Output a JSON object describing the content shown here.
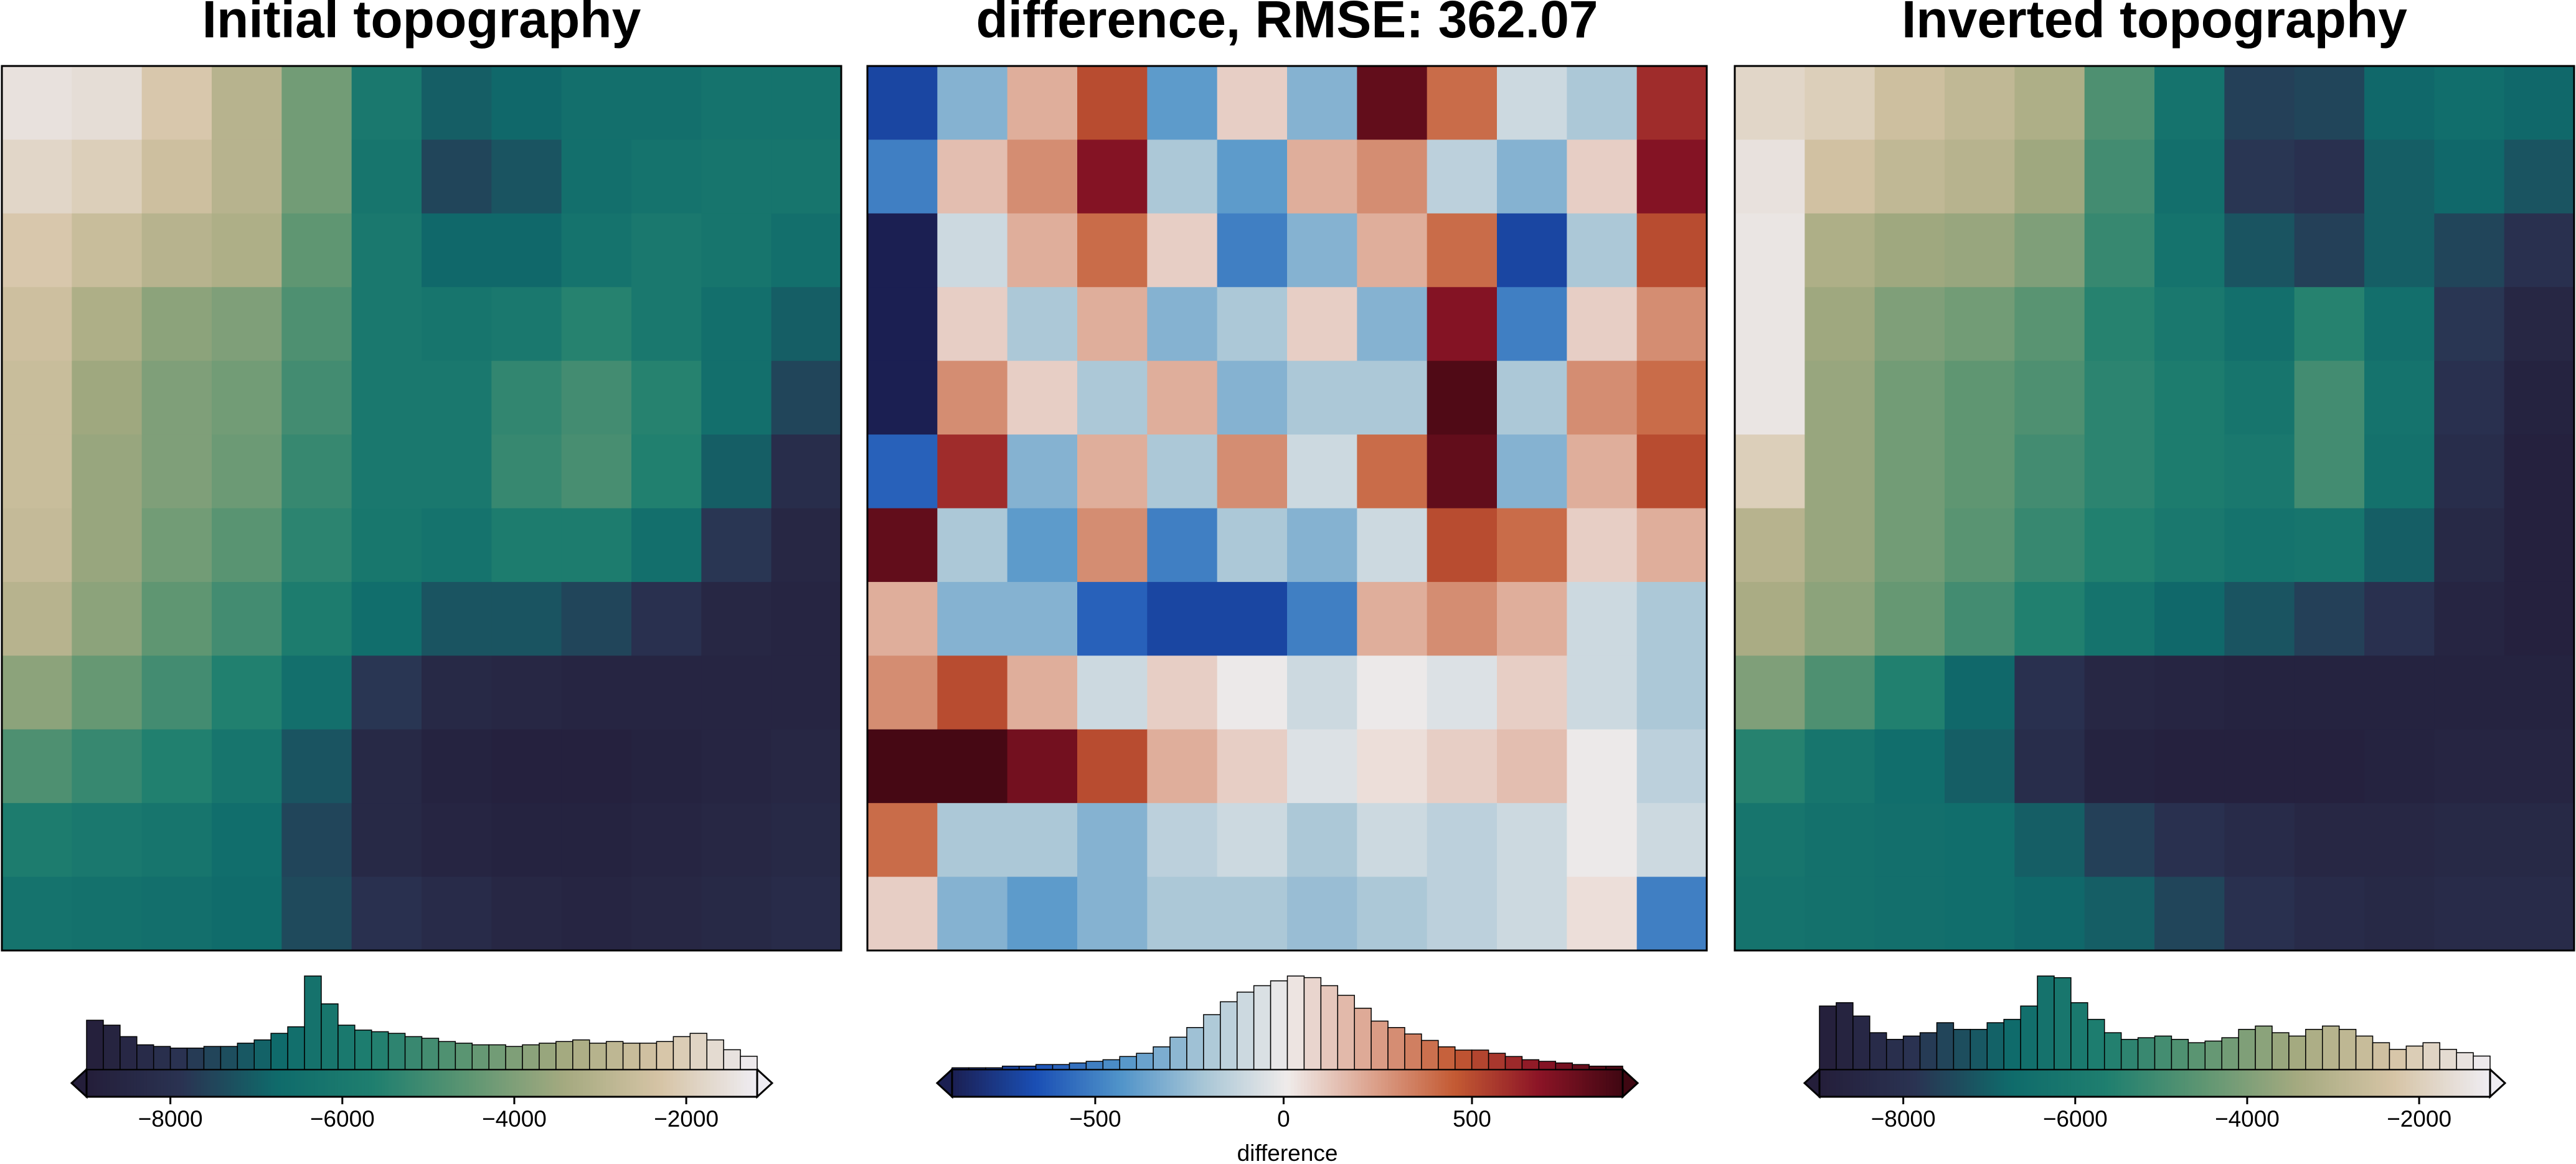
{
  "chart_data": [
    {
      "type": "heatmap",
      "title": "Initial topography",
      "colors": [
        "#241e3a",
        "#2a3352",
        "#0f6b6b",
        "#1f7f6f",
        "#5e9672",
        "#a5aa80",
        "#d6c4a6",
        "#efedf3"
      ],
      "z": [
        [
          -1500,
          -1600,
          -2200,
          -3000,
          -4200,
          -6000,
          -7000,
          -6800,
          -6500,
          -6500,
          -6300,
          -6300
        ],
        [
          -1800,
          -2000,
          -2500,
          -3000,
          -4200,
          -6200,
          -7500,
          -7200,
          -6500,
          -6300,
          -6200,
          -6200
        ],
        [
          -2200,
          -2600,
          -3000,
          -3200,
          -4500,
          -6000,
          -6800,
          -6800,
          -6300,
          -6000,
          -6200,
          -6500
        ],
        [
          -2500,
          -3200,
          -3800,
          -4000,
          -4800,
          -6000,
          -6200,
          -6000,
          -5500,
          -6000,
          -6500,
          -7000
        ],
        [
          -2600,
          -3500,
          -4000,
          -4200,
          -5000,
          -6000,
          -6000,
          -5300,
          -5000,
          -5500,
          -6500,
          -7500
        ],
        [
          -2600,
          -3600,
          -4000,
          -4300,
          -5200,
          -6000,
          -6000,
          -5200,
          -4900,
          -5600,
          -7000,
          -8200
        ],
        [
          -2700,
          -3600,
          -4200,
          -4600,
          -5400,
          -6100,
          -6300,
          -5800,
          -5800,
          -6500,
          -7800,
          -8500
        ],
        [
          -3000,
          -3800,
          -4500,
          -5000,
          -5800,
          -6600,
          -7200,
          -7200,
          -7500,
          -8000,
          -8500,
          -8600
        ],
        [
          -3800,
          -4400,
          -5000,
          -5600,
          -6500,
          -7800,
          -8400,
          -8500,
          -8600,
          -8600,
          -8600,
          -8600
        ],
        [
          -4800,
          -5200,
          -5600,
          -6200,
          -7200,
          -8400,
          -8700,
          -8800,
          -8800,
          -8700,
          -8600,
          -8500
        ],
        [
          -5800,
          -6000,
          -6200,
          -6600,
          -7500,
          -8400,
          -8600,
          -8700,
          -8700,
          -8600,
          -8500,
          -8400
        ],
        [
          -6300,
          -6400,
          -6500,
          -6700,
          -7400,
          -8000,
          -8300,
          -8500,
          -8600,
          -8500,
          -8400,
          -8300
        ]
      ],
      "colorbar": {
        "xlim": [
          -8975,
          -1175
        ],
        "xticks": [
          {
            "value": -8000,
            "label": "−8000"
          },
          {
            "value": -6000,
            "label": "−6000"
          },
          {
            "value": -4000,
            "label": "−4000"
          },
          {
            "value": -2000,
            "label": "−2000"
          }
        ]
      },
      "histogram": {
        "bins": [
          -8975,
          -8780,
          -8585,
          -8390,
          -8195,
          -8000,
          -7805,
          -7610,
          -7415,
          -7220,
          -7025,
          -6830,
          -6635,
          -6440,
          -6245,
          -6050,
          -5855,
          -5660,
          -5465,
          -5270,
          -5075,
          -4880,
          -4685,
          -4490,
          -4295,
          -4100,
          -3905,
          -3710,
          -3515,
          -3320,
          -3125,
          -2930,
          -2735,
          -2540,
          -2345,
          -2150,
          -1955,
          -1760,
          -1565,
          -1370,
          -1175
        ],
        "counts": [
          30,
          27,
          20,
          15,
          14,
          13,
          13,
          14,
          14,
          16,
          18,
          22,
          26,
          57,
          40,
          27,
          24,
          23,
          22,
          20,
          19,
          17,
          16,
          15,
          15,
          14,
          15,
          16,
          17,
          18,
          16,
          17,
          16,
          16,
          17,
          20,
          22,
          18,
          12,
          8
        ]
      }
    },
    {
      "type": "heatmap",
      "title": "difference, RMSE: 362.07",
      "colors": [
        "#1b1f52",
        "#1a4fb5",
        "#4f93c9",
        "#a8c6d6",
        "#efebea",
        "#dca38e",
        "#c35a33",
        "#8c1426",
        "#3f0712"
      ],
      "z": [
        [
          -700,
          -300,
          200,
          500,
          -400,
          100,
          -300,
          800,
          400,
          -100,
          -200,
          600
        ],
        [
          -500,
          150,
          300,
          700,
          -200,
          -400,
          200,
          300,
          -150,
          -300,
          100,
          700
        ],
        [
          -880,
          -100,
          200,
          400,
          100,
          -500,
          -300,
          200,
          400,
          -700,
          -200,
          500
        ],
        [
          -880,
          100,
          -200,
          200,
          -300,
          -200,
          100,
          -300,
          700,
          -500,
          100,
          300
        ],
        [
          -880,
          300,
          100,
          -200,
          200,
          -300,
          -200,
          -200,
          850,
          -200,
          300,
          400
        ],
        [
          -600,
          600,
          -300,
          200,
          -200,
          300,
          -100,
          400,
          800,
          -300,
          200,
          500
        ],
        [
          800,
          -200,
          -400,
          300,
          -500,
          -200,
          -300,
          -100,
          500,
          400,
          100,
          200
        ],
        [
          200,
          -300,
          -300,
          -600,
          -700,
          -700,
          -500,
          200,
          300,
          200,
          -100,
          -200
        ],
        [
          300,
          500,
          200,
          -100,
          100,
          0,
          -100,
          0,
          -50,
          100,
          -100,
          -200
        ],
        [
          880,
          880,
          750,
          500,
          200,
          100,
          -50,
          50,
          100,
          150,
          0,
          -150
        ],
        [
          400,
          -200,
          -200,
          -300,
          -150,
          -100,
          -200,
          -100,
          -150,
          -100,
          0,
          -100
        ],
        [
          100,
          -300,
          -400,
          -300,
          -200,
          -200,
          -250,
          -200,
          -150,
          -100,
          50,
          -500
        ]
      ],
      "colorbar": {
        "xlim": [
          -880,
          900
        ],
        "label": "difference",
        "xticks": [
          {
            "value": -500,
            "label": "−500"
          },
          0,
          500
        ]
      },
      "histogram": {
        "bins": [
          -880,
          -835.5,
          -791,
          -746.5,
          -702,
          -657.5,
          -613,
          -568.5,
          -524,
          -479.5,
          -435,
          -390.5,
          -346,
          -301.5,
          -257,
          -212.5,
          -168,
          -123.5,
          -79,
          -34.5,
          10,
          54.5,
          99,
          143.5,
          188,
          232.5,
          277,
          321.5,
          366,
          410.5,
          455,
          499.5,
          544,
          588.5,
          633,
          677.5,
          722,
          766.5,
          811,
          855.5,
          900
        ],
        "counts": [
          1,
          1,
          1,
          2,
          2,
          3,
          3,
          4,
          5,
          6,
          8,
          10,
          14,
          20,
          26,
          34,
          42,
          48,
          52,
          55,
          58,
          57,
          52,
          46,
          38,
          30,
          26,
          22,
          18,
          14,
          12,
          12,
          10,
          8,
          6,
          5,
          4,
          3,
          2,
          2
        ]
      }
    },
    {
      "type": "heatmap",
      "title": "Inverted topography",
      "colors": [
        "#241e3a",
        "#2a3352",
        "#0f6b6b",
        "#1f7f6f",
        "#5e9672",
        "#a5aa80",
        "#d6c4a6",
        "#efedf3"
      ],
      "z": [
        [
          -1800,
          -2000,
          -2500,
          -2800,
          -3200,
          -4800,
          -6300,
          -7600,
          -7500,
          -6800,
          -6600,
          -6800
        ],
        [
          -1500,
          -2400,
          -2800,
          -3000,
          -3500,
          -5000,
          -6500,
          -7800,
          -8000,
          -7000,
          -6800,
          -7200
        ],
        [
          -1400,
          -3200,
          -3500,
          -3600,
          -4000,
          -5200,
          -6300,
          -7200,
          -7600,
          -7000,
          -7500,
          -8000
        ],
        [
          -1400,
          -3500,
          -4000,
          -4200,
          -4600,
          -5500,
          -6000,
          -6500,
          -5500,
          -6500,
          -7800,
          -8500
        ],
        [
          -1400,
          -3600,
          -4200,
          -4500,
          -4800,
          -5400,
          -5800,
          -6200,
          -5000,
          -6300,
          -8000,
          -8700
        ],
        [
          -2000,
          -3600,
          -4200,
          -4500,
          -5000,
          -5400,
          -5800,
          -6000,
          -5000,
          -6400,
          -8200,
          -8800
        ],
        [
          -3000,
          -3600,
          -4200,
          -4600,
          -5200,
          -5600,
          -6000,
          -6300,
          -6200,
          -7000,
          -8400,
          -8800
        ],
        [
          -3300,
          -3800,
          -4400,
          -5000,
          -5600,
          -6300,
          -6800,
          -7200,
          -7600,
          -8000,
          -8600,
          -8800
        ],
        [
          -4000,
          -4800,
          -5600,
          -6800,
          -8000,
          -8500,
          -8600,
          -8700,
          -8700,
          -8700,
          -8700,
          -8700
        ],
        [
          -5500,
          -6200,
          -6600,
          -7000,
          -8200,
          -8700,
          -8800,
          -8800,
          -8800,
          -8700,
          -8600,
          -8600
        ],
        [
          -6200,
          -6400,
          -6500,
          -6600,
          -7000,
          -7600,
          -8000,
          -8300,
          -8500,
          -8500,
          -8400,
          -8400
        ],
        [
          -6300,
          -6400,
          -6500,
          -6600,
          -6800,
          -7000,
          -7500,
          -8000,
          -8300,
          -8400,
          -8300,
          -8300
        ]
      ],
      "colorbar": {
        "xlim": [
          -8975,
          -1175
        ],
        "xticks": [
          {
            "value": -8000,
            "label": "−8000"
          },
          {
            "value": -6000,
            "label": "−6000"
          },
          {
            "value": -4000,
            "label": "−4000"
          },
          {
            "value": -2000,
            "label": "−2000"
          }
        ]
      },
      "histogram": {
        "bins": [
          -8975,
          -8780,
          -8585,
          -8390,
          -8195,
          -8000,
          -7805,
          -7610,
          -7415,
          -7220,
          -7025,
          -6830,
          -6635,
          -6440,
          -6245,
          -6050,
          -5855,
          -5660,
          -5465,
          -5270,
          -5075,
          -4880,
          -4685,
          -4490,
          -4295,
          -4100,
          -3905,
          -3710,
          -3515,
          -3320,
          -3125,
          -2930,
          -2735,
          -2540,
          -2345,
          -2150,
          -1955,
          -1760,
          -1565,
          -1370,
          -1175
        ],
        "counts": [
          38,
          40,
          32,
          22,
          18,
          20,
          22,
          28,
          24,
          24,
          28,
          30,
          38,
          56,
          55,
          40,
          30,
          22,
          18,
          19,
          20,
          18,
          16,
          17,
          19,
          24,
          26,
          22,
          20,
          24,
          26,
          24,
          20,
          16,
          12,
          14,
          16,
          12,
          10,
          8
        ]
      }
    }
  ]
}
